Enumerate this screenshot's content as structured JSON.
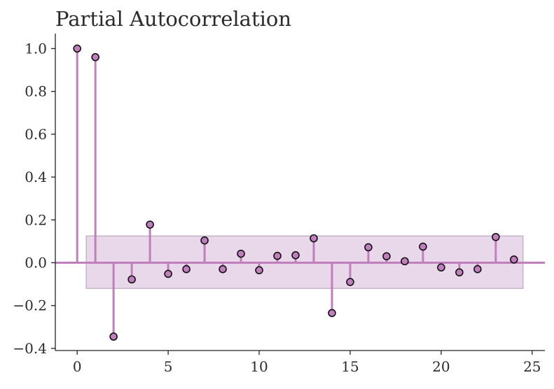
{
  "chart_data": {
    "type": "stem",
    "title": "Partial Autocorrelation",
    "xlabel": "",
    "ylabel": "",
    "xlim": [
      -1.2,
      25.7
    ],
    "ylim": [
      -0.41,
      1.07
    ],
    "xticks": [
      0,
      5,
      10,
      15,
      20,
      25
    ],
    "xtick_labels": [
      "0",
      "5",
      "10",
      "15",
      "20",
      "25"
    ],
    "yticks": [
      -0.4,
      -0.2,
      0.0,
      0.2,
      0.4,
      0.6,
      0.8,
      1.0
    ],
    "ytick_labels": [
      "−0.4",
      "−0.2",
      "0.0",
      "0.2",
      "0.4",
      "0.6",
      "0.8",
      "1.0"
    ],
    "grid": false,
    "lags": [
      0,
      1,
      2,
      3,
      4,
      5,
      6,
      7,
      8,
      9,
      10,
      11,
      12,
      13,
      14,
      15,
      16,
      17,
      18,
      19,
      20,
      21,
      22,
      23,
      24
    ],
    "values": [
      1.0,
      0.96,
      -0.345,
      -0.078,
      0.178,
      -0.052,
      -0.03,
      0.104,
      -0.03,
      0.042,
      -0.035,
      0.032,
      0.035,
      0.114,
      -0.235,
      -0.09,
      0.072,
      0.03,
      0.007,
      0.075,
      -0.022,
      -0.045,
      -0.03,
      0.12,
      0.015
    ],
    "confidence_band": {
      "x_start": 0.5,
      "x_end": 24.5,
      "lower": -0.12,
      "upper": 0.125
    },
    "colors": {
      "stem": "#c07ebd",
      "marker_fill": "#c07ebd",
      "marker_edge": "#111111",
      "band_fill": "#e9d8ea",
      "band_edge": "#b9a9bb",
      "zero_line": "#c07ebd"
    }
  }
}
